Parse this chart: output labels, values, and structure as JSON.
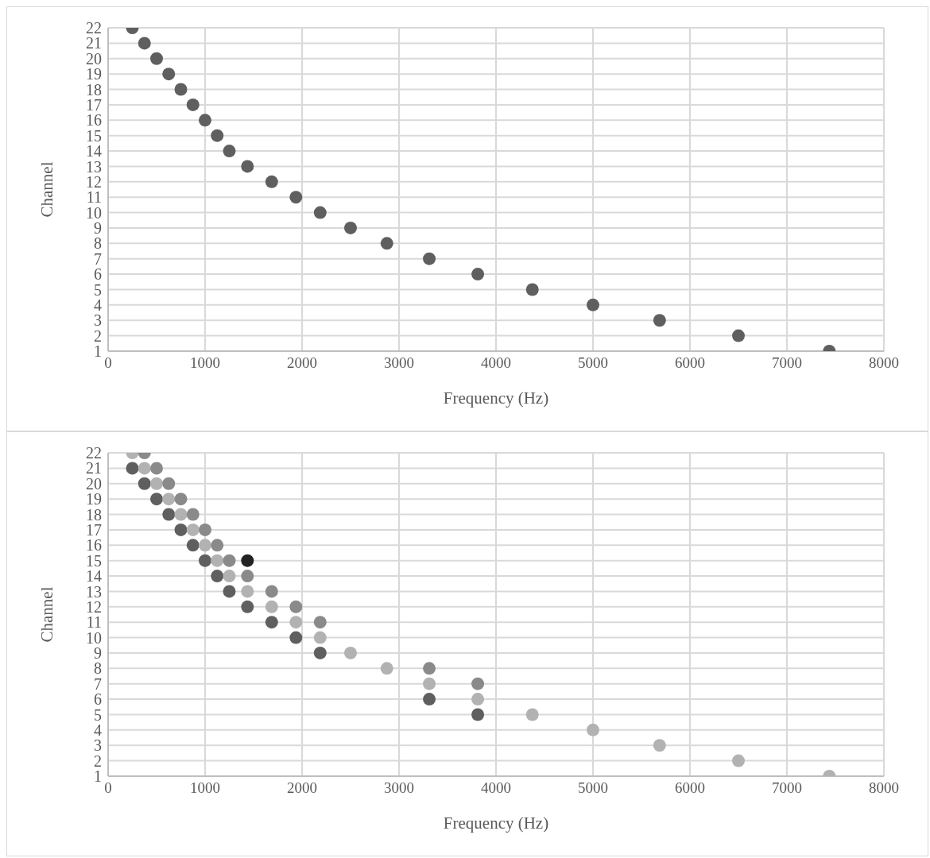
{
  "chart_data": [
    {
      "type": "scatter",
      "xlabel": "Frequency (Hz)",
      "ylabel": "Channel",
      "xlim": [
        0,
        8000
      ],
      "xticks": [
        0,
        1000,
        2000,
        3000,
        4000,
        5000,
        6000,
        7000,
        8000
      ],
      "ylim": [
        1,
        22
      ],
      "yticks": [
        1,
        2,
        3,
        4,
        5,
        6,
        7,
        8,
        9,
        10,
        11,
        12,
        13,
        14,
        15,
        16,
        17,
        18,
        19,
        20,
        21,
        22
      ],
      "grid": true,
      "marker": "circle",
      "series": [
        {
          "color": "#5f5f5f",
          "x": [
            250,
            375,
            500,
            625,
            750,
            875,
            1000,
            1125,
            1250,
            1437,
            1687,
            1937,
            2187,
            2500,
            2875,
            3312,
            3812,
            4375,
            5000,
            5687,
            6500,
            7437
          ],
          "values": [
            22,
            21,
            20,
            19,
            18,
            17,
            16,
            15,
            14,
            13,
            12,
            11,
            10,
            9,
            8,
            7,
            6,
            5,
            4,
            3,
            2,
            1
          ]
        }
      ]
    },
    {
      "type": "scatter",
      "xlabel": "Frequency (Hz)",
      "ylabel": "Channel",
      "xlim": [
        0,
        8000
      ],
      "xticks": [
        0,
        1000,
        2000,
        3000,
        4000,
        5000,
        6000,
        7000,
        8000
      ],
      "ylim": [
        1,
        22
      ],
      "yticks": [
        1,
        2,
        3,
        4,
        5,
        6,
        7,
        8,
        9,
        10,
        11,
        12,
        13,
        14,
        15,
        16,
        17,
        18,
        19,
        20,
        21,
        22
      ],
      "grid": true,
      "marker": "circle",
      "series": [
        {
          "color": "#5f5f5f",
          "x": [
            250,
            375,
            500,
            625,
            750,
            875,
            1000,
            1125,
            1250,
            1437,
            1687,
            1937,
            2187,
            3312,
            3812
          ],
          "values": [
            21,
            20,
            19,
            18,
            17,
            16,
            15,
            14,
            13,
            12,
            11,
            10,
            9,
            6,
            5
          ]
        },
        {
          "color": "#b2b2b2",
          "x": [
            250,
            375,
            500,
            625,
            750,
            875,
            1000,
            1125,
            1250,
            1437,
            1687,
            1937,
            2187,
            2500,
            2875,
            3312,
            3812,
            4375,
            5000,
            5687,
            6500,
            7437
          ],
          "values": [
            22,
            21,
            20,
            19,
            18,
            17,
            16,
            15,
            14,
            13,
            12,
            11,
            10,
            9,
            8,
            7,
            6,
            5,
            4,
            3,
            2,
            1
          ]
        },
        {
          "color": "#8a8a8a",
          "x": [
            375,
            500,
            625,
            750,
            875,
            1000,
            1125,
            1250,
            1437,
            1687,
            1937,
            2187,
            3312,
            3812
          ],
          "values": [
            22,
            21,
            20,
            19,
            18,
            17,
            16,
            15,
            14,
            13,
            12,
            11,
            8,
            7
          ]
        },
        {
          "color": "#222222",
          "x": [
            1437
          ],
          "values": [
            15
          ]
        }
      ]
    }
  ]
}
